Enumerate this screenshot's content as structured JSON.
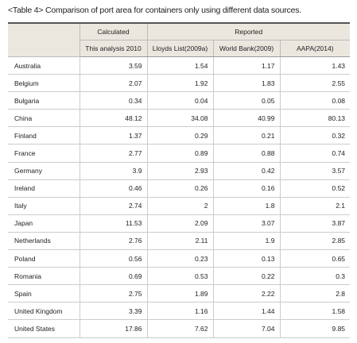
{
  "title": "<Table 4> Comparison of port area for containers only using different data sources.",
  "header": {
    "groups": [
      "Calculated",
      "Reported"
    ],
    "columns": [
      "This analysis 2010",
      "Lloyds List(2009a)",
      "World Bank(2009)",
      "AAPA(2014)"
    ]
  },
  "table": {
    "rows": [
      [
        "Australia",
        "3.59",
        "1.54",
        "1.17",
        "1.43"
      ],
      [
        "Belgium",
        "2.07",
        "1.92",
        "1.83",
        "2.55"
      ],
      [
        "Bulgaria",
        "0.34",
        "0.04",
        "0.05",
        "0.08"
      ],
      [
        "China",
        "48.12",
        "34.08",
        "40.99",
        "80.13"
      ],
      [
        "Finland",
        "1.37",
        "0.29",
        "0.21",
        "0.32"
      ],
      [
        "France",
        "2.77",
        "0.89",
        "0.88",
        "0.74"
      ],
      [
        "Germany",
        "3.9",
        "2.93",
        "0.42",
        "3.57"
      ],
      [
        "Ireland",
        "0.46",
        "0.26",
        "0.16",
        "0.52"
      ],
      [
        "Italy",
        "2.74",
        "2",
        "1.8",
        "2.1"
      ],
      [
        "Japan",
        "11.53",
        "2.09",
        "3.07",
        "3.87"
      ],
      [
        "Netherlands",
        "2.76",
        "2.11",
        "1.9",
        "2.85"
      ],
      [
        "Poland",
        "0.56",
        "0.23",
        "0.13",
        "0.65"
      ],
      [
        "Romania",
        "0.69",
        "0.53",
        "0.22",
        "0.3"
      ],
      [
        "Spain",
        "2.75",
        "1.89",
        "2.22",
        "2.8"
      ],
      [
        "United Kingdom",
        "3.39",
        "1.16",
        "1.44",
        "1.58"
      ],
      [
        "United States",
        "17.86",
        "7.62",
        "7.04",
        "9.85"
      ]
    ]
  }
}
